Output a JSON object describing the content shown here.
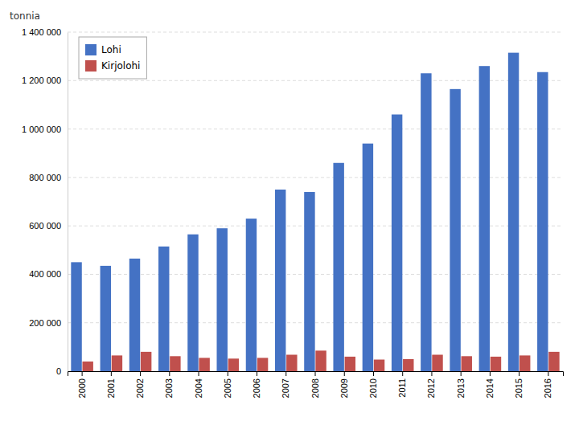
{
  "chart_data": {
    "type": "bar",
    "ylabel": "tonnia",
    "categories": [
      "2000",
      "2001",
      "2002",
      "2003",
      "2004",
      "2005",
      "2006",
      "2007",
      "2008",
      "2009",
      "2010",
      "2011",
      "2012",
      "2013",
      "2014",
      "2015",
      "2016"
    ],
    "series": [
      {
        "name": "Lohi",
        "color": "#4472C4",
        "values": [
          450000,
          435000,
          465000,
          515000,
          565000,
          590000,
          630000,
          750000,
          740000,
          860000,
          940000,
          1060000,
          1230000,
          1165000,
          1260000,
          1315000,
          1235000
        ]
      },
      {
        "name": "Kirjolohi",
        "color": "#C0504D",
        "values": [
          40000,
          65000,
          80000,
          62000,
          55000,
          52000,
          55000,
          68000,
          85000,
          60000,
          48000,
          50000,
          68000,
          62000,
          60000,
          65000,
          80000
        ]
      }
    ],
    "ylim": [
      0,
      1400000
    ],
    "yticks": [
      0,
      {
        "value": 200000,
        "label": "200 000"
      },
      {
        "value": 400000,
        "label": "400 000"
      },
      {
        "value": 600000,
        "label": "600 000"
      },
      {
        "value": 800000,
        "label": "800 000"
      },
      {
        "value": 1000000,
        "label": "1 000 000"
      },
      {
        "value": 1200000,
        "label": "1 200 000"
      },
      {
        "value": 1400000,
        "label": "1 400 000"
      }
    ],
    "grid": true,
    "legend": "upper left"
  }
}
